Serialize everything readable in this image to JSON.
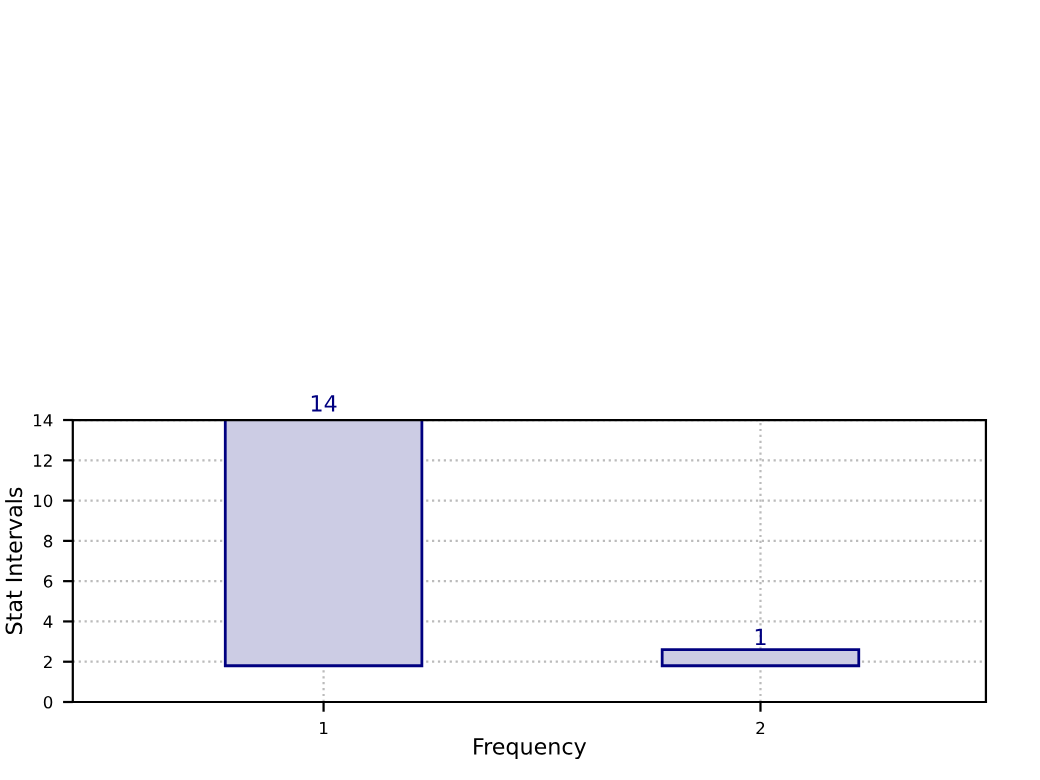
{
  "chart_data": {
    "type": "bar",
    "xlabel": "Frequency",
    "ylabel": "Stat Intervals",
    "categories": [
      "1",
      "2"
    ],
    "values": [
      12.4,
      0.8
    ],
    "base": [
      1.8,
      1.8
    ],
    "value_labels": [
      "14",
      "1"
    ],
    "color": "#cccce4",
    "ylim": [
      0,
      14
    ],
    "yticks": [
      0,
      2,
      4,
      6,
      8,
      10,
      12,
      14
    ],
    "grid": true,
    "line_style": "dotted"
  }
}
